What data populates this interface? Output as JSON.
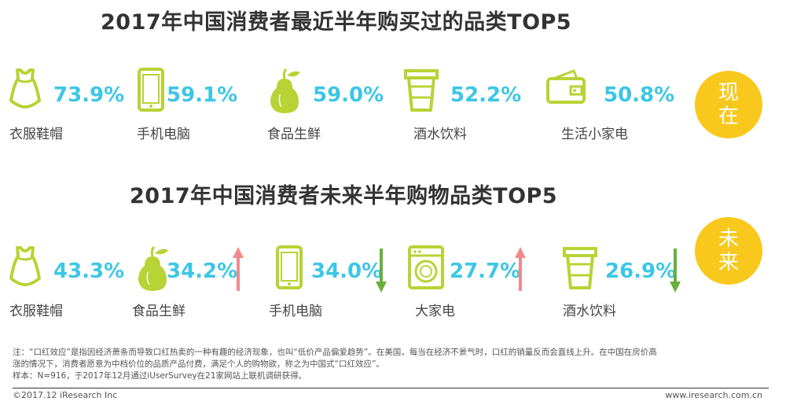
{
  "colors": {
    "icon_green": "#b7d335",
    "percent_blue": "#3dc6e6",
    "badge_yellow": "#f8c81c",
    "arrow_up": "#f08a8c",
    "arrow_down": "#6aaf3d"
  },
  "chart_data": [
    {
      "type": "table",
      "title": "2017年中国消费者最近半年购买过的品类TOP5",
      "badge": "现在",
      "unit": "%",
      "items": [
        {
          "label": "衣服鞋帽",
          "value": 73.9,
          "display": "73.9%",
          "icon": "dress-icon"
        },
        {
          "label": "手机电脑",
          "value": 59.1,
          "display": "59.1%",
          "icon": "phone-icon"
        },
        {
          "label": "食品生鲜",
          "value": 59.0,
          "display": "59.0%",
          "icon": "pear-icon"
        },
        {
          "label": "酒水饮料",
          "value": 52.2,
          "display": "52.2%",
          "icon": "cup-icon"
        },
        {
          "label": "生活小家电",
          "value": 50.8,
          "display": "50.8%",
          "icon": "wallet-icon"
        }
      ]
    },
    {
      "type": "table",
      "title": "2017年中国消费者未来半年购物品类TOP5",
      "badge": "未来",
      "unit": "%",
      "items": [
        {
          "label": "衣服鞋帽",
          "value": 43.3,
          "display": "43.3%",
          "icon": "dress-icon",
          "trend": ""
        },
        {
          "label": "食品生鲜",
          "value": 34.2,
          "display": "34.2%",
          "icon": "pear-icon",
          "trend": "up"
        },
        {
          "label": "手机电脑",
          "value": 34.0,
          "display": "34.0%",
          "icon": "phone-icon",
          "trend": "down"
        },
        {
          "label": "大家电",
          "value": 27.7,
          "display": "27.7%",
          "icon": "washer-icon",
          "trend": "up"
        },
        {
          "label": "酒水饮料",
          "value": 26.9,
          "display": "26.9%",
          "icon": "cup-icon",
          "trend": "down"
        }
      ]
    }
  ],
  "notes": {
    "line1": "注：“口红效应”是指因经济萧条而导致口红热卖的一种有趣的经济现象，也叫“低价产品偏爱趋势”。在美国，每当在经济不景气时，口红的销量反而会直线上升。在中国在房价高",
    "line2": "涨的情况下，消费者愿意为中档价位的品质产品付费，满足个人的购物欲，称之为中国式“口红效应”。",
    "line3": "样本：N=916，于2017年12月通过iUserSurvey在21家网站上联机调研获得。"
  },
  "footer": {
    "copyright": "©2017.12 iResearch Inc",
    "website": "www.iresearch.com.cn"
  }
}
